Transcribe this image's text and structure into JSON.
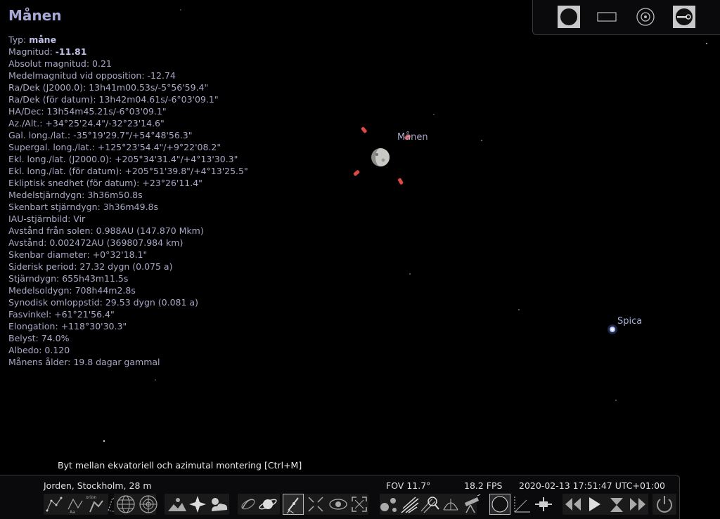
{
  "object": {
    "name": "Månen",
    "info": [
      {
        "label": "Typ: ",
        "value": "måne",
        "bold": true
      },
      {
        "label": "Magnitud: ",
        "value": "-11.81",
        "bold": true
      },
      {
        "label": "Absolut magnitud: ",
        "value": "0.21"
      },
      {
        "label": "Medelmagnitud vid opposition: ",
        "value": "-12.74"
      },
      {
        "label": "Ra/Dek (J2000.0): ",
        "value": "13h41m00.53s/-5°56'59.4\""
      },
      {
        "label": "Ra/Dek (för datum): ",
        "value": "13h42m04.61s/-6°03'09.1\""
      },
      {
        "label": "HA/Dec: ",
        "value": "13h54m45.21s/-6°03'09.1\""
      },
      {
        "label": "Az./Alt.: ",
        "value": "+34°25'24.4\"/-32°23'14.6\""
      },
      {
        "label": "Gal. long./lat.: ",
        "value": "-35°19'29.7\"/+54°48'56.3\""
      },
      {
        "label": "Supergal. long./lat.: ",
        "value": "+125°23'54.4\"/+9°22'08.2\""
      },
      {
        "label": "Ekl. long./lat. (J2000.0): ",
        "value": "+205°34'31.4\"/+4°13'30.3\""
      },
      {
        "label": "Ekl. long./lat. (för datum): ",
        "value": "+205°51'39.8\"/+4°13'25.5\""
      },
      {
        "label": "Ekliptisk snedhet (för datum): ",
        "value": "+23°26'11.4\""
      },
      {
        "label": "Medelstjärndygn: ",
        "value": "3h36m50.8s"
      },
      {
        "label": "Skenbart stjärndygn: ",
        "value": "3h36m49.8s"
      },
      {
        "label": "IAU-stjärnbild: ",
        "value": "Vir"
      },
      {
        "label": "Avstånd från solen: ",
        "value": "0.988AU (147.870 Mkm)"
      },
      {
        "label": "Avstånd: ",
        "value": "0.002472AU (369807.984 km)"
      },
      {
        "label": "Skenbar diameter: ",
        "value": "+0°32'18.1\""
      },
      {
        "label": "Siderisk period: ",
        "value": "27.32 dygn (0.075 a)"
      },
      {
        "label": "Stjärndygn: ",
        "value": "655h43m11.5s"
      },
      {
        "label": "Medelsoldygn: ",
        "value": "708h44m2.8s"
      },
      {
        "label": "Synodisk omloppstid: ",
        "value": "29.53 dygn (0.081 a)"
      },
      {
        "label": "Fasvinkel: ",
        "value": "+61°21'56.4\""
      },
      {
        "label": "Elongation: ",
        "value": "+118°30'30.3\""
      },
      {
        "label": "Belyst: ",
        "value": "74.0%"
      },
      {
        "label": "Albedo: ",
        "value": "0.120"
      },
      {
        "label": "Månens ålder: ",
        "value": "19.8 dagar gammal"
      }
    ]
  },
  "sky_labels": {
    "moon": "Månen",
    "spica": "Spica"
  },
  "tooltip": "Byt mellan ekvatoriell och azimutal montering  [Ctrl+M]",
  "status": {
    "location": "Jorden, Stockholm, 28 m",
    "fov": "FOV 11.7°",
    "fps": "18.2 FPS",
    "datetime": "2020-02-13 17:51:47 UTC+01:00"
  },
  "toolbar_text": {
    "orion_tag": "orion"
  },
  "mount_panel": {
    "buttons": [
      "moon-disc-icon",
      "rectangle-icon",
      "target-circle-icon",
      "mount-toggle-icon"
    ]
  },
  "colors": {
    "background": "#000000",
    "info_text": "#a8a8c8",
    "selection_marker": "#e04848",
    "spica": "#b8c8ff"
  }
}
